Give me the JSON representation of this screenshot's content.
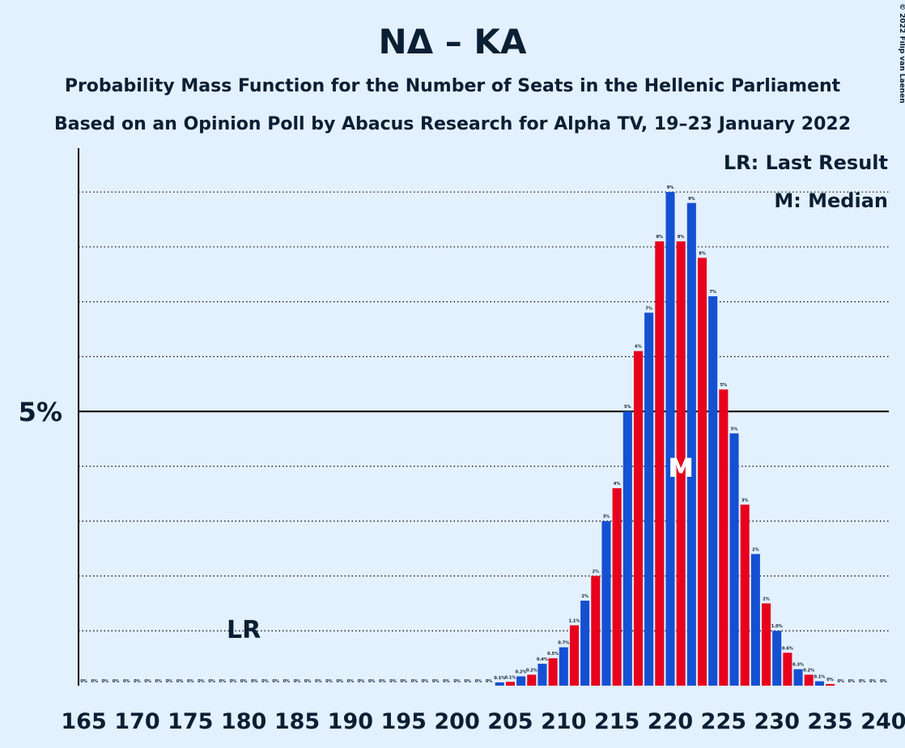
{
  "chart_data": {
    "type": "bar",
    "title": "NΔ – KA",
    "subtitle": [
      "Probability Mass Function for the Number of Seats in the Hellenic Parliament",
      "Based on an Opinion Poll by Abacus Research for Alpha TV, 19–23 January 2022"
    ],
    "copyright": "© 2022 Filip van Laenen",
    "legend": [
      "LR: Last Result",
      "M: Median"
    ],
    "x": [
      165,
      166,
      167,
      168,
      169,
      170,
      171,
      172,
      173,
      174,
      175,
      176,
      177,
      178,
      179,
      180,
      181,
      182,
      183,
      184,
      185,
      186,
      187,
      188,
      189,
      190,
      191,
      192,
      193,
      194,
      195,
      196,
      197,
      198,
      199,
      200,
      201,
      202,
      203,
      204,
      205,
      206,
      207,
      208,
      209,
      210,
      211,
      212,
      213,
      214,
      215,
      216,
      217,
      218,
      219,
      220,
      221,
      222,
      223,
      224,
      225,
      226,
      227,
      228,
      229,
      230,
      231,
      232,
      233,
      234,
      235,
      236,
      237,
      238,
      239,
      240
    ],
    "values": [
      0,
      0,
      0,
      0,
      0,
      0,
      0,
      0,
      0,
      0,
      0,
      0,
      0,
      0,
      0,
      0,
      0,
      0,
      0,
      0,
      0,
      0,
      0,
      0,
      0,
      0,
      0,
      0,
      0,
      0,
      0,
      0,
      0,
      0,
      0,
      0,
      0,
      0,
      0,
      0.06,
      0.07,
      0.17,
      0.2,
      0.4,
      0.5,
      0.7,
      1.1,
      1.55,
      2.0,
      3.0,
      3.6,
      5.0,
      6.1,
      6.8,
      8.1,
      9.0,
      8.1,
      8.8,
      7.8,
      7.1,
      5.4,
      4.6,
      3.3,
      2.4,
      1.5,
      1.0,
      0.6,
      0.3,
      0.2,
      0.08,
      0.03,
      0,
      0,
      0,
      0,
      0
    ],
    "value_labels": [
      "0%",
      "0%",
      "0%",
      "0%",
      "0%",
      "0%",
      "0%",
      "0%",
      "0%",
      "0%",
      "0%",
      "0%",
      "0%",
      "0%",
      "0%",
      "0%",
      "0%",
      "0%",
      "0%",
      "0%",
      "0%",
      "0%",
      "0%",
      "0%",
      "0%",
      "0%",
      "0%",
      "0%",
      "0%",
      "0%",
      "0%",
      "0%",
      "0%",
      "0%",
      "0%",
      "0%",
      "0%",
      "0%",
      "0%",
      "0.1%",
      "0.1%",
      "0.2%",
      "0.2%",
      "0.4%",
      "0.5%",
      "0.7%",
      "1.1%",
      "2%",
      "2%",
      "3%",
      "4%",
      "5%",
      "6%",
      "7%",
      "8%",
      "9%",
      "8%",
      "9%",
      "8%",
      "7%",
      "5%",
      "5%",
      "3%",
      "2%",
      "2%",
      "1.0%",
      "0.6%",
      "0.3%",
      "0.2%",
      "0.1%",
      "0%",
      "0%",
      "0%",
      "0%",
      "0%",
      "0%"
    ],
    "bar_colors": [
      "#e8001c",
      "#1450d2"
    ],
    "xlim": [
      164.5,
      240.5
    ],
    "xticks": [
      165,
      170,
      175,
      180,
      185,
      190,
      195,
      200,
      205,
      210,
      215,
      220,
      225,
      230,
      235,
      240
    ],
    "ylim": [
      0,
      9.8
    ],
    "yticks": [
      {
        "value": 5,
        "label": "5%"
      }
    ],
    "yminor": [
      1,
      2,
      3,
      4,
      6,
      7,
      8,
      9
    ],
    "last_result": {
      "x": 180,
      "label": "LR"
    },
    "median": {
      "x": 221,
      "label": "M"
    }
  }
}
